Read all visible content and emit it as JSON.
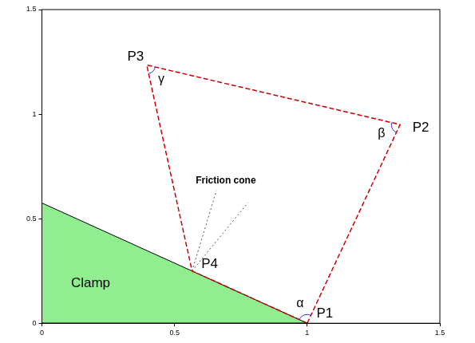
{
  "chart_data": {
    "type": "line",
    "xlim": [
      0,
      1.5
    ],
    "ylim": [
      0,
      1.5
    ],
    "xticks": [
      0,
      0.5,
      1,
      1.5
    ],
    "yticks": [
      0,
      0.5,
      1,
      1.5
    ],
    "grid": false,
    "polygon": {
      "color": "#cc0000",
      "line_style": "dashed",
      "points": [
        {
          "label": "P1",
          "x": 1.0,
          "y": 0.0
        },
        {
          "label": "P2",
          "x": 1.35,
          "y": 0.95
        },
        {
          "label": "P3",
          "x": 0.395,
          "y": 1.235
        },
        {
          "label": "P4",
          "x": 0.566,
          "y": 0.25
        }
      ]
    },
    "angles": [
      {
        "label": "α",
        "at": "P1"
      },
      {
        "label": "β",
        "at": "P2"
      },
      {
        "label": "γ",
        "at": "P3"
      }
    ],
    "angle_color": "#3333cc",
    "region": {
      "label": "Clamp",
      "color": "#90ee90",
      "x": [
        0,
        0,
        1.0
      ],
      "y": [
        0,
        0.575,
        0
      ]
    },
    "cone": {
      "label": "Friction cone",
      "apex": "P4",
      "line_style": "dotted",
      "x": [
        0.658,
        0.777
      ],
      "y": [
        0.635,
        0.577
      ]
    }
  }
}
